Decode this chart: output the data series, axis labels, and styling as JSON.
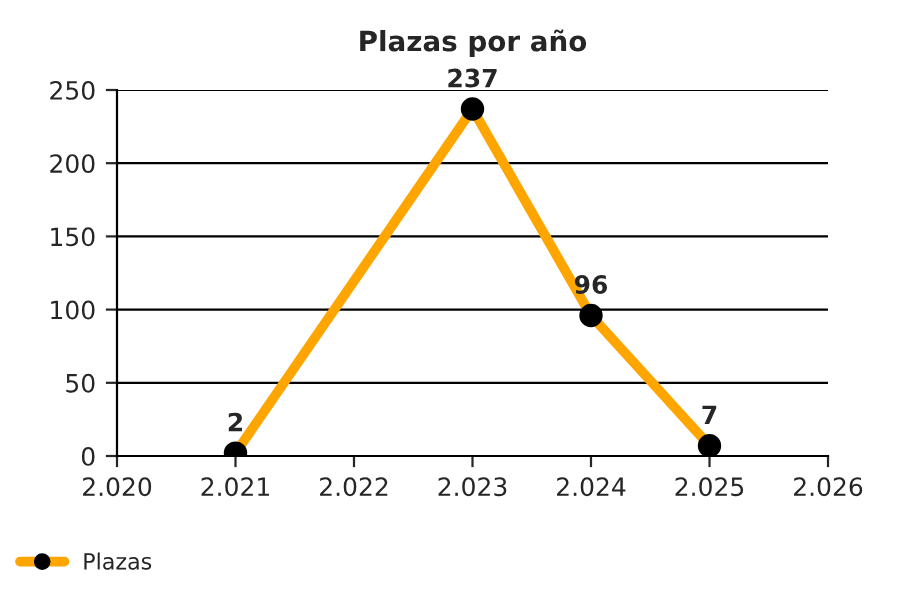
{
  "chart_data": {
    "type": "line",
    "title": "Plazas por año",
    "x": [
      2021,
      2023,
      2024,
      2025
    ],
    "series": [
      {
        "name": "Plazas",
        "color": "#ffa500",
        "values": [
          2,
          237,
          96,
          7
        ]
      }
    ],
    "xlim": [
      2020,
      2026
    ],
    "xticks": [
      {
        "value": 2020,
        "label": "2.020"
      },
      {
        "value": 2021,
        "label": "2.021"
      },
      {
        "value": 2022,
        "label": "2.022"
      },
      {
        "value": 2023,
        "label": "2.023"
      },
      {
        "value": 2024,
        "label": "2.024"
      },
      {
        "value": 2025,
        "label": "2.025"
      },
      {
        "value": 2026,
        "label": "2.026"
      }
    ],
    "ylim": [
      0,
      250
    ],
    "yticks": [
      0,
      50,
      100,
      150,
      200,
      250
    ],
    "grid": "y",
    "legend": "bottom left",
    "marker": "circle",
    "line_style": "solid",
    "data_labels": true
  }
}
